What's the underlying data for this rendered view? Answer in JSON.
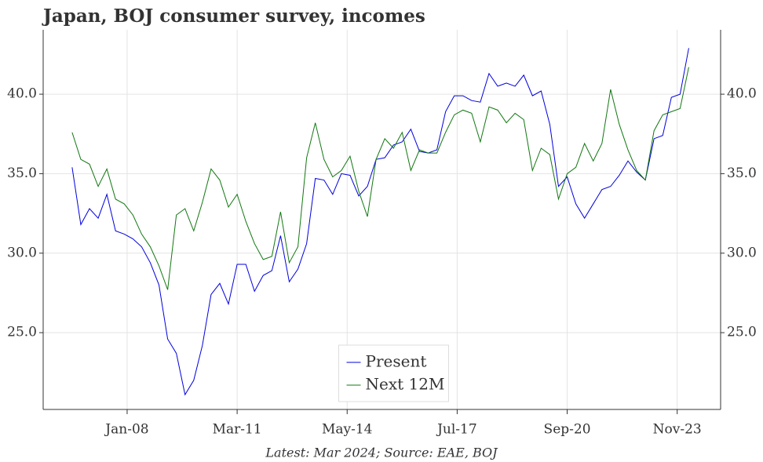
{
  "chart_data": {
    "type": "line",
    "title": "Japan, BOJ consumer survey, incomes",
    "footnote": "Latest: Mar 2024; Source: EAE, BOJ",
    "x": [
      "2006-06",
      "2006-09",
      "2006-12",
      "2007-03",
      "2007-06",
      "2007-09",
      "2007-12",
      "2008-03",
      "2008-06",
      "2008-09",
      "2008-12",
      "2009-03",
      "2009-06",
      "2009-09",
      "2009-12",
      "2010-03",
      "2010-06",
      "2010-09",
      "2010-12",
      "2011-03",
      "2011-06",
      "2011-09",
      "2011-12",
      "2012-03",
      "2012-06",
      "2012-09",
      "2012-12",
      "2013-03",
      "2013-06",
      "2013-09",
      "2013-12",
      "2014-03",
      "2014-06",
      "2014-09",
      "2014-12",
      "2015-03",
      "2015-06",
      "2015-09",
      "2015-12",
      "2016-03",
      "2016-06",
      "2016-09",
      "2016-12",
      "2017-03",
      "2017-06",
      "2017-09",
      "2017-12",
      "2018-03",
      "2018-06",
      "2018-09",
      "2018-12",
      "2019-03",
      "2019-06",
      "2019-09",
      "2019-12",
      "2020-03",
      "2020-06",
      "2020-09",
      "2020-12",
      "2021-03",
      "2021-06",
      "2021-09",
      "2021-12",
      "2022-03",
      "2022-06",
      "2022-09",
      "2022-12",
      "2023-03",
      "2023-06",
      "2023-09",
      "2023-12",
      "2024-03"
    ],
    "series": [
      {
        "name": "Present",
        "color": "#0000dd",
        "values": [
          35.4,
          31.8,
          32.8,
          32.2,
          33.7,
          31.4,
          31.2,
          30.9,
          30.4,
          29.4,
          28.0,
          24.6,
          23.7,
          21.1,
          22.0,
          24.2,
          27.4,
          28.1,
          26.8,
          29.3,
          29.3,
          27.6,
          28.6,
          28.9,
          31.1,
          28.2,
          29.0,
          30.6,
          34.7,
          34.6,
          33.7,
          35.0,
          34.9,
          33.6,
          34.2,
          35.9,
          36.0,
          36.8,
          37.0,
          37.8,
          36.4,
          36.3,
          36.5,
          38.9,
          39.9,
          39.9,
          39.6,
          39.5,
          41.3,
          40.5,
          40.7,
          40.5,
          41.2,
          39.9,
          40.2,
          38.1,
          34.2,
          34.8,
          33.1,
          32.2,
          33.1,
          34.0,
          34.2,
          34.9,
          35.8,
          35.1,
          34.6,
          37.2,
          37.4,
          39.8,
          40.0,
          42.9
        ]
      },
      {
        "name": "Next 12M",
        "color": "#117711",
        "values": [
          37.6,
          35.9,
          35.6,
          34.2,
          35.3,
          33.4,
          33.1,
          32.4,
          31.2,
          30.4,
          29.2,
          27.7,
          32.4,
          32.8,
          31.4,
          33.2,
          35.3,
          34.6,
          32.9,
          33.7,
          32.0,
          30.6,
          29.6,
          29.8,
          32.6,
          29.4,
          30.4,
          36.0,
          38.2,
          35.9,
          34.8,
          35.2,
          36.1,
          33.9,
          32.3,
          35.9,
          37.2,
          36.6,
          37.6,
          35.2,
          36.5,
          36.3,
          36.3,
          37.6,
          38.7,
          39.0,
          38.8,
          37.0,
          39.2,
          39.0,
          38.2,
          38.8,
          38.4,
          35.2,
          36.6,
          36.2,
          33.4,
          35.0,
          35.4,
          36.9,
          35.8,
          36.9,
          40.3,
          38.1,
          36.5,
          35.2,
          34.6,
          37.7,
          38.7,
          38.9,
          39.1,
          41.7
        ]
      }
    ],
    "xlim": [
      "2005-08",
      "2025-02"
    ],
    "xticks": [
      {
        "value": "2008-01",
        "label": "Jan-08"
      },
      {
        "value": "2011-03",
        "label": "Mar-11"
      },
      {
        "value": "2014-05",
        "label": "May-14"
      },
      {
        "value": "2017-07",
        "label": "Jul-17"
      },
      {
        "value": "2020-09",
        "label": "Sep-20"
      },
      {
        "value": "2023-11",
        "label": "Nov-23"
      }
    ],
    "ylim": [
      20.17,
      44.05
    ],
    "yticks": [
      {
        "value": 25,
        "label": "25.0"
      },
      {
        "value": 30,
        "label": "30.0"
      },
      {
        "value": 35,
        "label": "35.0"
      },
      {
        "value": 40,
        "label": "40.0"
      }
    ],
    "y2lim": [
      20.17,
      44.05
    ],
    "y2ticks": [
      {
        "value": 25,
        "label": "25.0"
      },
      {
        "value": 30,
        "label": "30.0"
      },
      {
        "value": 35,
        "label": "35.0"
      },
      {
        "value": 40,
        "label": "40.0"
      }
    ],
    "grid": true,
    "legend": "lower center"
  }
}
